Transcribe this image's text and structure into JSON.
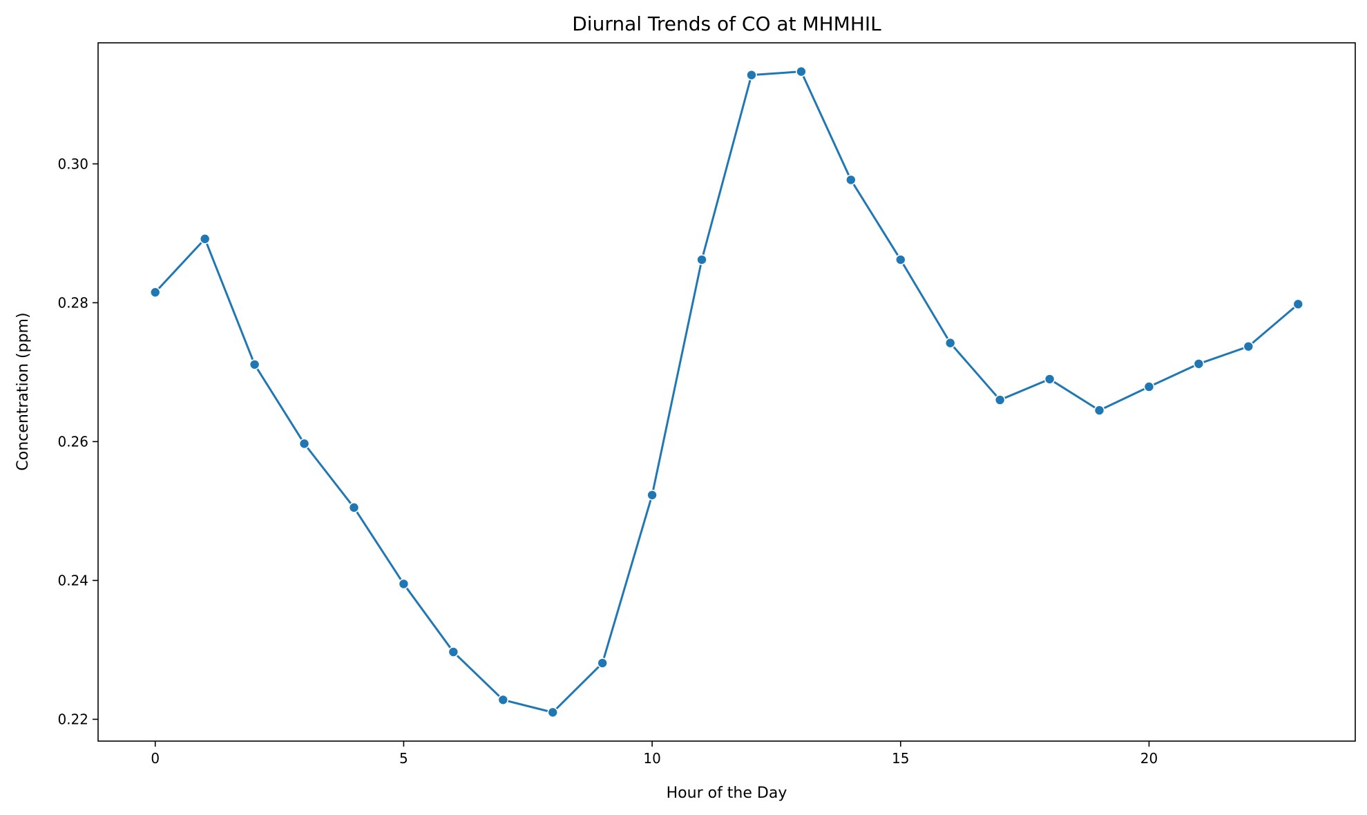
{
  "chart_data": {
    "type": "line",
    "title": "Diurnal Trends of CO at MHMHIL",
    "xlabel": "Hour of the Day",
    "ylabel": "Concentration (ppm)",
    "x": [
      0,
      1,
      2,
      3,
      4,
      5,
      6,
      7,
      8,
      9,
      10,
      11,
      12,
      13,
      14,
      15,
      16,
      17,
      18,
      19,
      20,
      21,
      22,
      23
    ],
    "series": [
      {
        "values": [
          0.2815,
          0.2892,
          0.2711,
          0.2597,
          0.2505,
          0.2395,
          0.2297,
          0.2228,
          0.221,
          0.2281,
          0.2523,
          0.2862,
          0.3128,
          0.3133,
          0.2977,
          0.2862,
          0.2742,
          0.266,
          0.269,
          0.2645,
          0.2679,
          0.2712,
          0.2737,
          0.2798
        ],
        "color": "#1f77b4",
        "marker": "circle"
      }
    ],
    "xticks": [
      0,
      5,
      10,
      15,
      20
    ],
    "xtick_labels": [
      "0",
      "5",
      "10",
      "15",
      "20"
    ],
    "yticks": [
      0.22,
      0.24,
      0.26,
      0.28,
      0.3
    ],
    "ytick_labels": [
      "0.22",
      "0.24",
      "0.26",
      "0.28",
      "0.30"
    ],
    "xlim": [
      -1.15,
      24.15
    ],
    "ylim": [
      0.21686,
      0.31744
    ],
    "grid": false,
    "legend": "none"
  }
}
